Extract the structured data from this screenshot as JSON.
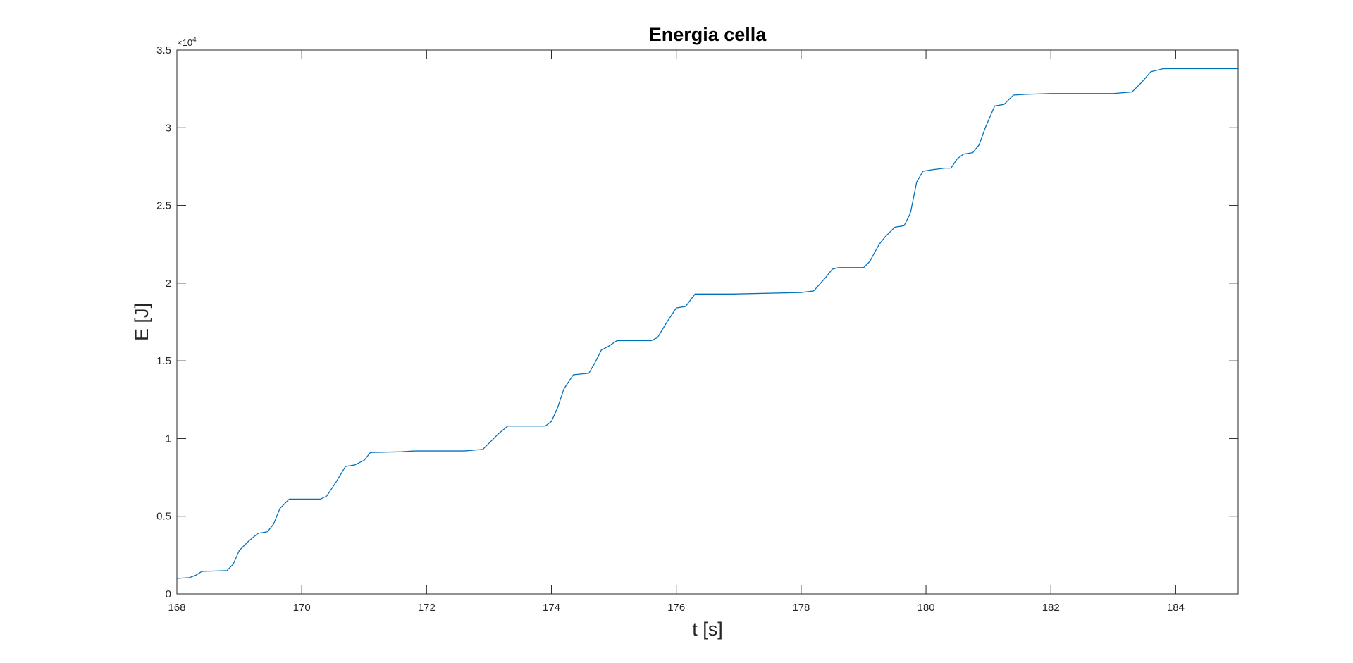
{
  "chart_data": {
    "type": "line",
    "title": "Energia cella",
    "xlabel": "t [s]",
    "ylabel": "E [J]",
    "xlim": [
      168,
      185
    ],
    "ylim": [
      0,
      35000
    ],
    "xticks": [
      168,
      170,
      172,
      174,
      176,
      178,
      180,
      182,
      184
    ],
    "xtick_labels": [
      "168",
      "170",
      "172",
      "174",
      "176",
      "178",
      "180",
      "182",
      "184"
    ],
    "yticks": [
      0,
      5000,
      10000,
      15000,
      20000,
      25000,
      30000,
      35000
    ],
    "ytick_labels": [
      "0",
      "0.5",
      "1",
      "1.5",
      "2",
      "2.5",
      "3",
      "3.5"
    ],
    "y_exponent_prefix": "×10",
    "y_exponent_power": "4",
    "grid": false,
    "box": true,
    "line_color": "#0072BD",
    "axis_color": "#262626",
    "series": [
      {
        "x": [
          168.0,
          168.2,
          168.3,
          168.4,
          168.8,
          168.9,
          169.0,
          169.15,
          169.3,
          169.45,
          169.55,
          169.65,
          169.8,
          170.3,
          170.4,
          170.55,
          170.7,
          170.85,
          171.0,
          171.1,
          171.6,
          171.8,
          172.6,
          172.9,
          173.0,
          173.15,
          173.3,
          173.9,
          174.0,
          174.1,
          174.2,
          174.35,
          174.6,
          174.7,
          174.8,
          174.9,
          175.05,
          175.6,
          175.7,
          175.85,
          176.0,
          176.15,
          176.3,
          176.9,
          178.0,
          178.2,
          178.4,
          178.5,
          178.6,
          179.0,
          179.1,
          179.25,
          179.35,
          179.5,
          179.65,
          179.75,
          179.85,
          179.95,
          180.1,
          180.3,
          180.4,
          180.5,
          180.6,
          180.75,
          180.85,
          180.95,
          181.1,
          181.25,
          181.4,
          181.6,
          182.0,
          182.5,
          183.0,
          183.3,
          183.45,
          183.6,
          183.8,
          184.2,
          185.0
        ],
        "y": [
          1000,
          1050,
          1200,
          1450,
          1500,
          1900,
          2800,
          3400,
          3900,
          4000,
          4500,
          5500,
          6100,
          6100,
          6300,
          7200,
          8200,
          8300,
          8600,
          9100,
          9150,
          9200,
          9200,
          9300,
          9700,
          10300,
          10800,
          10800,
          11100,
          12000,
          13200,
          14100,
          14200,
          14900,
          15700,
          15900,
          16300,
          16300,
          16500,
          17500,
          18400,
          18500,
          19300,
          19300,
          19400,
          19500,
          20400,
          20900,
          21000,
          21000,
          21400,
          22500,
          23000,
          23600,
          23700,
          24500,
          26500,
          27200,
          27300,
          27400,
          27400,
          28000,
          28300,
          28400,
          28900,
          30000,
          31400,
          31500,
          32100,
          32150,
          32200,
          32200,
          32200,
          32300,
          32900,
          33600,
          33800,
          33800,
          33800
        ]
      }
    ]
  }
}
